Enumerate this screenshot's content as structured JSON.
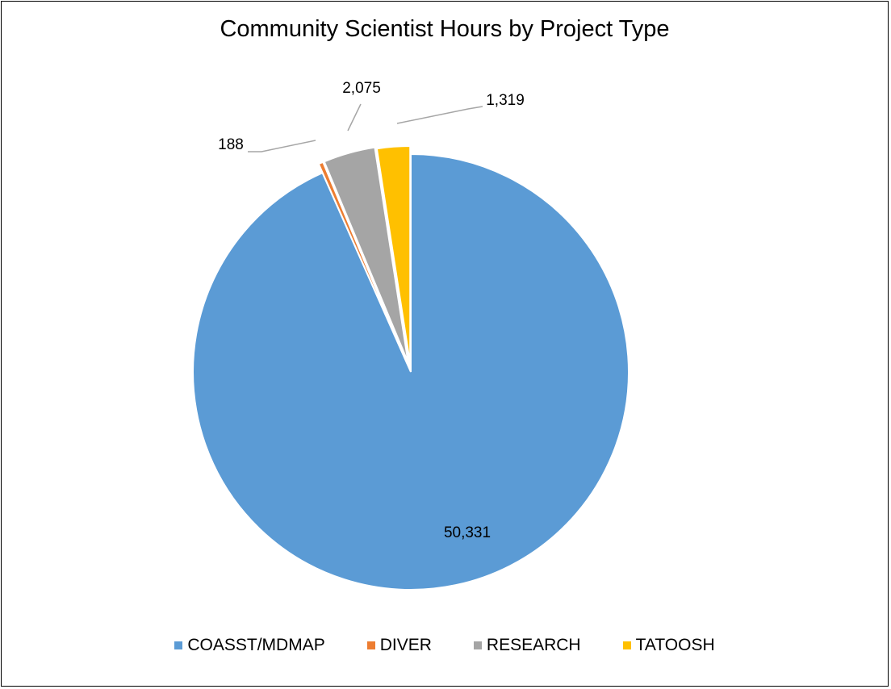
{
  "chart_data": {
    "type": "pie",
    "title": "Community Scientist Hours by Project Type",
    "categories": [
      "COASST/MDMAP",
      "DIVER",
      "RESEARCH",
      "TATOOSH"
    ],
    "values": [
      50331,
      188,
      2075,
      1319
    ],
    "data_labels": [
      "50,331",
      "188",
      "2,075",
      "1,319"
    ],
    "colors": [
      "#5B9BD5",
      "#ED7D31",
      "#A5A5A5",
      "#FFC000"
    ],
    "legend_position": "bottom",
    "exploded": true
  }
}
